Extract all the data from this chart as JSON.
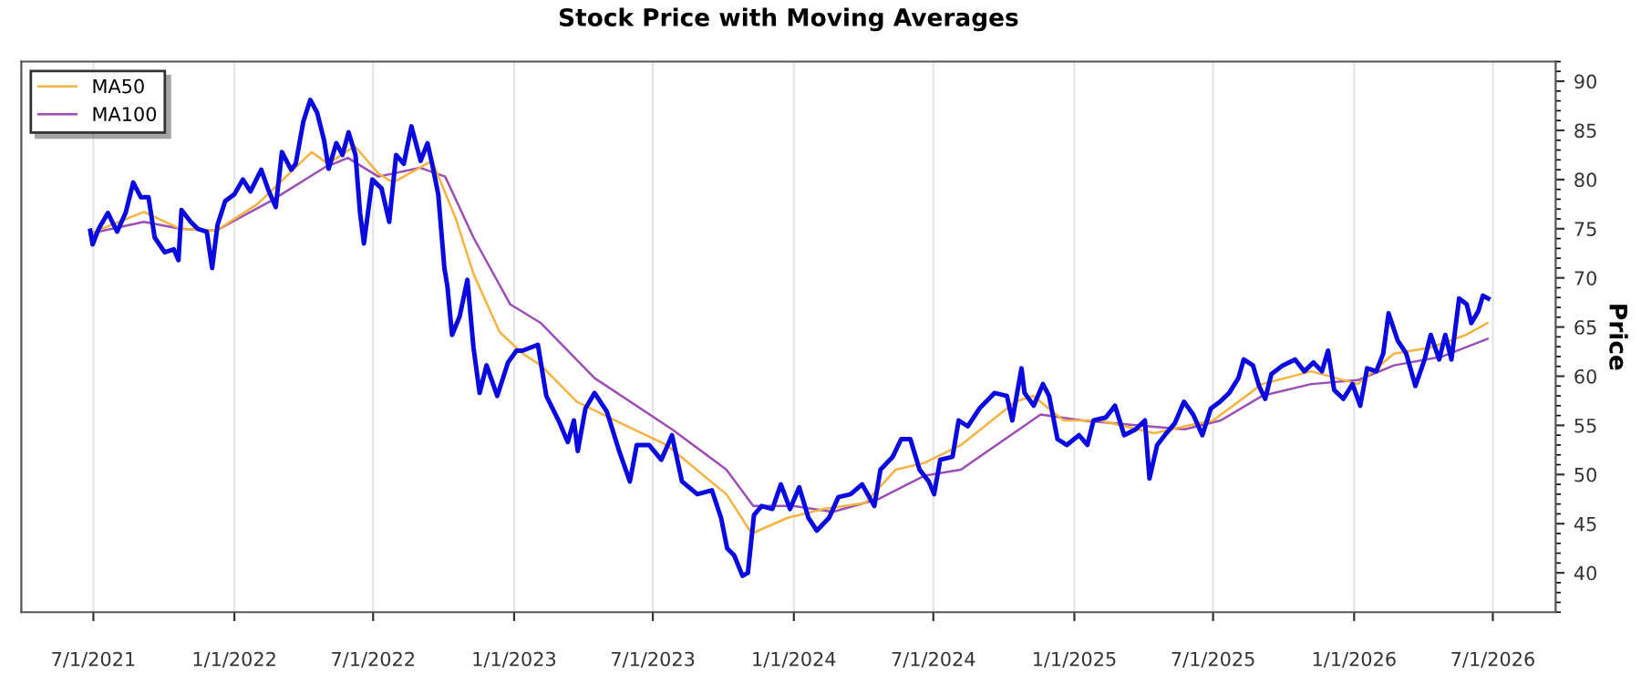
{
  "chart_data": {
    "type": "line",
    "title": "Stock Price with Moving Averages",
    "ylabel": "Price",
    "xlim": [
      "2021-03-29",
      "2026-09-21"
    ],
    "ylim": [
      36,
      92
    ],
    "xticks": [
      {
        "value": "2021-07-01",
        "label": "7/1/2021"
      },
      {
        "value": "2022-01-01",
        "label": "1/1/2022"
      },
      {
        "value": "2022-07-01",
        "label": "7/1/2022"
      },
      {
        "value": "2023-01-01",
        "label": "1/1/2023"
      },
      {
        "value": "2023-07-01",
        "label": "7/1/2023"
      },
      {
        "value": "2024-01-01",
        "label": "1/1/2024"
      },
      {
        "value": "2024-07-01",
        "label": "7/1/2024"
      },
      {
        "value": "2025-01-01",
        "label": "1/1/2025"
      },
      {
        "value": "2025-07-01",
        "label": "7/1/2025"
      },
      {
        "value": "2026-01-01",
        "label": "1/1/2026"
      },
      {
        "value": "2026-07-01",
        "label": "7/1/2026"
      }
    ],
    "yticks": [
      40,
      45,
      50,
      55,
      60,
      65,
      70,
      75,
      80,
      85,
      90
    ],
    "grid": "x",
    "legend": "top left",
    "marker": "none",
    "line_style": "solid",
    "series": [
      {
        "color": "#0a0ae0",
        "x": [
          "2021-06-27",
          "2021-06-30",
          "2021-07-08",
          "2021-07-20",
          "2021-08-01",
          "2021-08-12",
          "2021-08-22",
          "2021-09-01",
          "2021-09-11",
          "2021-09-19",
          "2021-10-02",
          "2021-10-14",
          "2021-10-20",
          "2021-10-24",
          "2021-11-05",
          "2021-11-14",
          "2021-11-26",
          "2021-12-03",
          "2021-12-10",
          "2021-12-20",
          "2022-01-01",
          "2022-01-12",
          "2022-01-22",
          "2022-02-05",
          "2022-02-15",
          "2022-02-24",
          "2022-03-04",
          "2022-03-16",
          "2022-03-22",
          "2022-04-01",
          "2022-04-10",
          "2022-04-19",
          "2022-04-28",
          "2022-05-04",
          "2022-05-14",
          "2022-05-22",
          "2022-05-30",
          "2022-06-08",
          "2022-06-14",
          "2022-06-19",
          "2022-06-30",
          "2022-07-12",
          "2022-07-22",
          "2022-07-31",
          "2022-08-10",
          "2022-08-20",
          "2022-09-01",
          "2022-09-10",
          "2022-09-16",
          "2022-09-24",
          "2022-10-02",
          "2022-10-06",
          "2022-10-12",
          "2022-10-22",
          "2022-11-01",
          "2022-11-09",
          "2022-11-17",
          "2022-11-26",
          "2022-12-10",
          "2022-12-24",
          "2023-01-04",
          "2023-01-12",
          "2023-02-01",
          "2023-02-12",
          "2023-02-28",
          "2023-03-12",
          "2023-03-20",
          "2023-03-25",
          "2023-04-04",
          "2023-04-16",
          "2023-05-02",
          "2023-05-18",
          "2023-06-01",
          "2023-06-10",
          "2023-06-26",
          "2023-07-12",
          "2023-07-26",
          "2023-08-08",
          "2023-08-28",
          "2023-09-16",
          "2023-09-28",
          "2023-10-06",
          "2023-10-15",
          "2023-10-26",
          "2023-11-02",
          "2023-11-10",
          "2023-11-20",
          "2023-12-04",
          "2023-12-15",
          "2023-12-27",
          "2024-01-08",
          "2024-01-20",
          "2024-01-31",
          "2024-02-16",
          "2024-02-28",
          "2024-03-15",
          "2024-03-30",
          "2024-04-15",
          "2024-04-23",
          "2024-05-09",
          "2024-05-20",
          "2024-06-01",
          "2024-06-13",
          "2024-06-25",
          "2024-07-02",
          "2024-07-10",
          "2024-07-26",
          "2024-08-03",
          "2024-08-15",
          "2024-08-30",
          "2024-09-19",
          "2024-10-05",
          "2024-10-12",
          "2024-10-24",
          "2024-10-28",
          "2024-11-09",
          "2024-11-21",
          "2024-11-29",
          "2024-12-10",
          "2024-12-22",
          "2025-01-07",
          "2025-01-18",
          "2025-01-26",
          "2025-02-11",
          "2025-02-23",
          "2025-03-07",
          "2025-03-22",
          "2025-04-03",
          "2025-04-09",
          "2025-04-19",
          "2025-05-01",
          "2025-05-12",
          "2025-05-24",
          "2025-06-05",
          "2025-06-17",
          "2025-06-28",
          "2025-07-10",
          "2025-07-22",
          "2025-08-03",
          "2025-08-10",
          "2025-08-22",
          "2025-08-30",
          "2025-09-07",
          "2025-09-15",
          "2025-09-30",
          "2025-10-16",
          "2025-10-28",
          "2025-11-09",
          "2025-11-20",
          "2025-11-28",
          "2025-12-06",
          "2025-12-18",
          "2025-12-30",
          "2026-01-09",
          "2026-01-18",
          "2026-01-30",
          "2026-02-08",
          "2026-02-15",
          "2026-02-27",
          "2026-03-10",
          "2026-03-22",
          "2026-04-03",
          "2026-04-11",
          "2026-04-22",
          "2026-04-30",
          "2026-05-08",
          "2026-05-18",
          "2026-05-28",
          "2026-06-03",
          "2026-06-12",
          "2026-06-18",
          "2026-06-25"
        ],
        "values": [
          74.8,
          73.4,
          75.0,
          76.6,
          74.7,
          76.6,
          79.7,
          78.2,
          78.2,
          74.1,
          72.6,
          72.9,
          71.8,
          76.9,
          75.7,
          75.0,
          74.7,
          71.0,
          75.4,
          77.8,
          78.5,
          80.0,
          78.8,
          81.0,
          78.8,
          77.2,
          82.8,
          81.0,
          81.6,
          85.9,
          88.1,
          86.8,
          84.0,
          81.1,
          83.7,
          82.5,
          84.8,
          82.5,
          76.6,
          73.5,
          80.0,
          79.1,
          75.7,
          82.5,
          81.6,
          85.4,
          81.9,
          83.7,
          81.6,
          78.5,
          71.0,
          69.1,
          64.2,
          66.1,
          69.8,
          62.9,
          58.3,
          61.1,
          58.0,
          61.4,
          62.6,
          62.6,
          63.2,
          58.0,
          55.5,
          53.3,
          55.5,
          52.4,
          56.7,
          58.3,
          56.4,
          52.4,
          49.3,
          53.0,
          53.0,
          51.5,
          54.0,
          49.3,
          48.0,
          48.4,
          45.6,
          42.5,
          41.8,
          39.7,
          40.0,
          45.9,
          46.8,
          46.5,
          49.0,
          46.5,
          48.7,
          45.6,
          44.3,
          45.6,
          47.7,
          48.0,
          49.0,
          46.8,
          50.5,
          51.8,
          53.6,
          53.6,
          50.5,
          49.3,
          48.0,
          51.5,
          51.8,
          55.5,
          54.9,
          56.7,
          58.3,
          58.0,
          55.5,
          60.8,
          58.3,
          57.0,
          59.2,
          58.0,
          53.6,
          53.0,
          54.0,
          53.0,
          55.5,
          55.8,
          57.0,
          54.0,
          54.6,
          55.5,
          49.6,
          53.0,
          54.2,
          55.2,
          57.4,
          56.1,
          54.0,
          56.7,
          57.4,
          58.3,
          59.8,
          61.7,
          61.1,
          59.0,
          57.7,
          60.2,
          61.1,
          61.7,
          60.5,
          61.4,
          60.5,
          62.6,
          58.6,
          57.7,
          59.2,
          57.0,
          60.8,
          60.5,
          62.3,
          66.4,
          63.6,
          62.3,
          59.0,
          61.7,
          64.2,
          61.7,
          64.2,
          61.7,
          67.9,
          67.3,
          65.4,
          66.6,
          68.2,
          67.9
        ]
      },
      {
        "name": "MA50",
        "color": "#f5b342",
        "x": [
          "2021-06-26",
          "2021-09-05",
          "2021-10-22",
          "2021-12-08",
          "2022-01-31",
          "2022-04-12",
          "2022-05-03",
          "2022-06-07",
          "2022-07-08",
          "2022-07-27",
          "2022-09-16",
          "2022-10-17",
          "2022-11-09",
          "2022-12-13",
          "2023-01-12",
          "2023-02-05",
          "2023-03-24",
          "2023-05-26",
          "2023-07-19",
          "2023-10-05",
          "2023-11-07",
          "2023-12-24",
          "2024-02-09",
          "2024-04-03",
          "2024-05-13",
          "2024-06-20",
          "2024-08-06",
          "2024-10-16",
          "2024-11-08",
          "2024-12-18",
          "2025-02-03",
          "2025-04-15",
          "2025-05-25",
          "2025-07-01",
          "2025-09-03",
          "2025-11-06",
          "2026-01-06",
          "2026-02-22",
          "2026-04-10",
          "2026-05-27",
          "2026-06-24"
        ],
        "values": [
          74.5,
          76.7,
          75.0,
          74.8,
          77.5,
          82.8,
          81.6,
          83.4,
          80.6,
          79.7,
          81.9,
          76.0,
          70.4,
          64.5,
          62.3,
          61.1,
          57.4,
          55.0,
          53.0,
          48.0,
          44.0,
          45.6,
          46.5,
          47.1,
          50.5,
          51.2,
          53.0,
          57.4,
          58.0,
          55.5,
          55.5,
          54.2,
          54.9,
          55.5,
          59.2,
          60.5,
          59.2,
          62.3,
          62.9,
          64.2,
          65.4
        ]
      },
      {
        "name": "MA100",
        "color": "#9b4fb5",
        "x": [
          "2021-06-26",
          "2021-09-05",
          "2021-10-22",
          "2021-12-08",
          "2022-02-17",
          "2022-04-28",
          "2022-05-29",
          "2022-07-08",
          "2022-08-31",
          "2022-10-03",
          "2022-11-09",
          "2022-12-27",
          "2023-02-05",
          "2023-04-16",
          "2023-07-26",
          "2023-10-05",
          "2023-11-09",
          "2023-12-31",
          "2024-02-21",
          "2024-04-20",
          "2024-06-20",
          "2024-08-06",
          "2024-11-18",
          "2025-01-11",
          "2025-04-08",
          "2025-05-25",
          "2025-07-11",
          "2025-09-03",
          "2025-11-06",
          "2026-01-06",
          "2026-02-22",
          "2026-04-26",
          "2026-06-24"
        ],
        "values": [
          74.5,
          75.7,
          75.0,
          74.8,
          77.8,
          81.2,
          82.2,
          80.3,
          81.2,
          80.3,
          74.1,
          67.3,
          65.4,
          59.8,
          54.6,
          50.5,
          46.8,
          46.8,
          46.2,
          47.5,
          49.9,
          50.5,
          56.1,
          55.5,
          54.9,
          54.6,
          55.5,
          58.0,
          59.2,
          59.6,
          61.1,
          62.0,
          63.8
        ]
      }
    ]
  }
}
